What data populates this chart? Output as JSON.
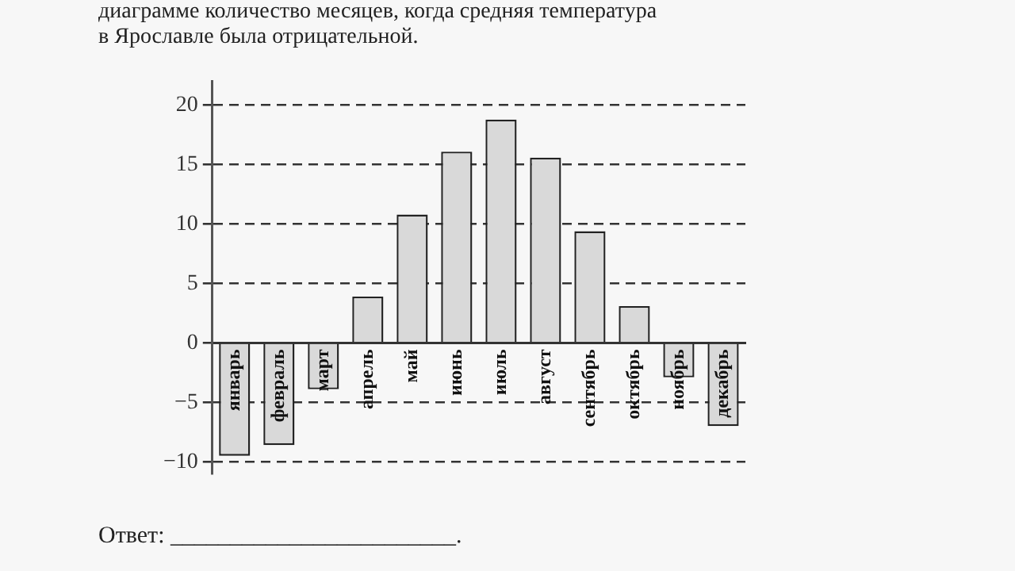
{
  "chart_data": {
    "type": "bar",
    "categories": [
      "январь",
      "февраль",
      "март",
      "апрель",
      "май",
      "июнь",
      "июль",
      "август",
      "сентябрь",
      "октябрь",
      "ноябрь",
      "декабрь"
    ],
    "values": [
      -9.5,
      -8.6,
      -3.9,
      3.9,
      10.8,
      16.1,
      18.8,
      15.6,
      9.4,
      3.1,
      -2.9,
      -7.0
    ],
    "color": "#d9d9d9",
    "ylim": [
      -11,
      22
    ],
    "yticks": [
      -10,
      -5,
      0,
      5,
      10,
      15,
      20
    ],
    "grid": "y",
    "annotations": [
      "диаграмме количество месяцев, когда средняя температура",
      "в Ярославле была отрицательной.",
      "Ответ: ________________________."
    ]
  }
}
